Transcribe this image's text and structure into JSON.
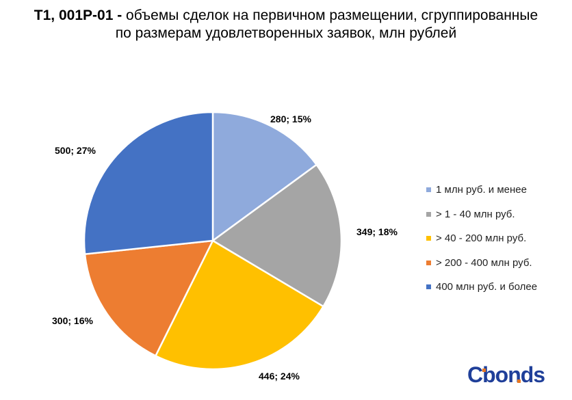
{
  "title": {
    "bold": "T1, 001P-01 -",
    "rest": " объемы сделок на первичном размещении, сгруппированные по размерам удовлетворенных заявок, млн рублей"
  },
  "logo": {
    "c": "C",
    "rest": "bonds"
  },
  "chart_data": {
    "type": "pie",
    "title": "T1, 001P-01 - объемы сделок на первичном размещении, сгруппированные по размерам удовлетворенных заявок, млн рублей",
    "legend_position": "right",
    "categories": [
      "1 млн руб. и менее",
      "> 1 - 40 млн руб.",
      "> 40 - 200 млн руб.",
      "> 200 - 400 млн руб.",
      "400 млн руб. и более"
    ],
    "values": [
      280,
      349,
      446,
      300,
      500
    ],
    "labels": [
      "280; 15%",
      "349; 18%",
      "446; 24%",
      "300; 16%",
      "500; 27%"
    ],
    "colors": [
      "#8faadc",
      "#a5a5a5",
      "#ffc000",
      "#ed7d31",
      "#4472c4"
    ]
  }
}
